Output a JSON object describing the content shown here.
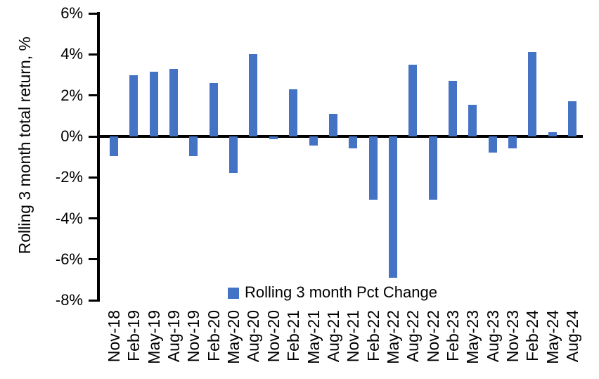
{
  "chart_data": {
    "type": "bar",
    "title": "",
    "xlabel": "",
    "ylabel": "Rolling 3 month total return, %",
    "ylim": [
      -8,
      6
    ],
    "ytick_labels": [
      "6%",
      "4%",
      "2%",
      "0%",
      "-2%",
      "-4%",
      "-6%",
      "-8%"
    ],
    "ytick_values": [
      6,
      4,
      2,
      0,
      -2,
      -4,
      -6,
      -8
    ],
    "grid": false,
    "legend_position": "bottom-center",
    "series_name": "Rolling 3 month Pct Change",
    "categories": [
      "Nov-18",
      "Feb-19",
      "May-19",
      "Aug-19",
      "Nov-19",
      "Feb-20",
      "May-20",
      "Aug-20",
      "Nov-20",
      "Feb-21",
      "May-21",
      "Aug-21",
      "Nov-21",
      "Feb-22",
      "May-22",
      "Aug-22",
      "Nov-22",
      "Feb-23",
      "May-23",
      "Aug-23",
      "Nov-23",
      "Feb-24",
      "May-24",
      "Aug-24"
    ],
    "values": [
      -0.95,
      3.0,
      3.15,
      3.3,
      -0.95,
      2.6,
      -1.8,
      4.0,
      -0.15,
      2.3,
      -0.45,
      1.1,
      -0.6,
      -3.1,
      -6.9,
      3.5,
      -3.1,
      2.7,
      1.55,
      -0.8,
      -0.6,
      4.1,
      0.2,
      1.7
    ]
  },
  "colors": {
    "bar": "#4472C4",
    "axis": "#000000",
    "text": "#000000"
  }
}
